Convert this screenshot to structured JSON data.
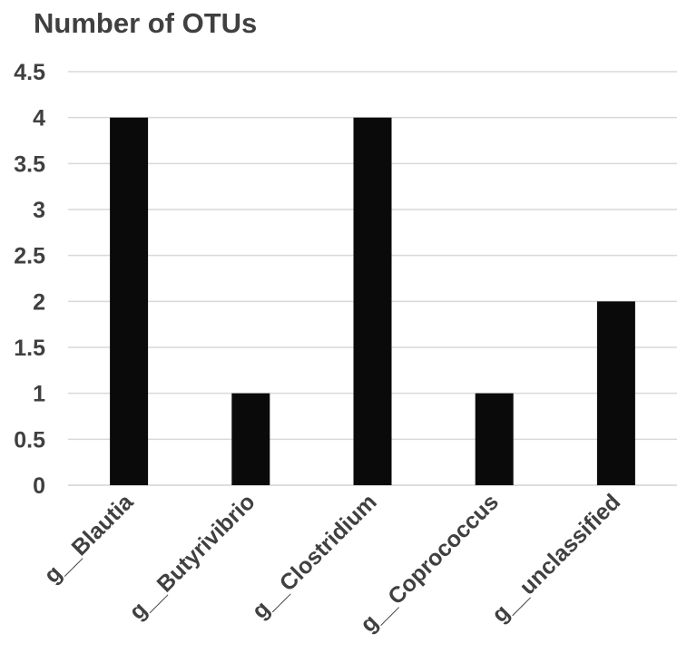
{
  "chart_data": {
    "type": "bar",
    "title": "Number of OTUs",
    "xlabel": "",
    "ylabel": "",
    "categories": [
      "g__Blautia",
      "g__Butyrivibrio",
      "g__Clostridium",
      "g__Coprococcus",
      "g__unclassified"
    ],
    "values": [
      4,
      1,
      4,
      1,
      2
    ],
    "ylim": [
      0,
      4.5
    ],
    "yticks": [
      "0",
      "0.5",
      "1",
      "1.5",
      "2",
      "2.5",
      "3",
      "3.5",
      "4",
      "4.5"
    ],
    "grid": true,
    "legend": "none",
    "colors": {
      "bar": "#0a0a0a",
      "grid": "#d9d9d9",
      "text": "#404040"
    }
  }
}
